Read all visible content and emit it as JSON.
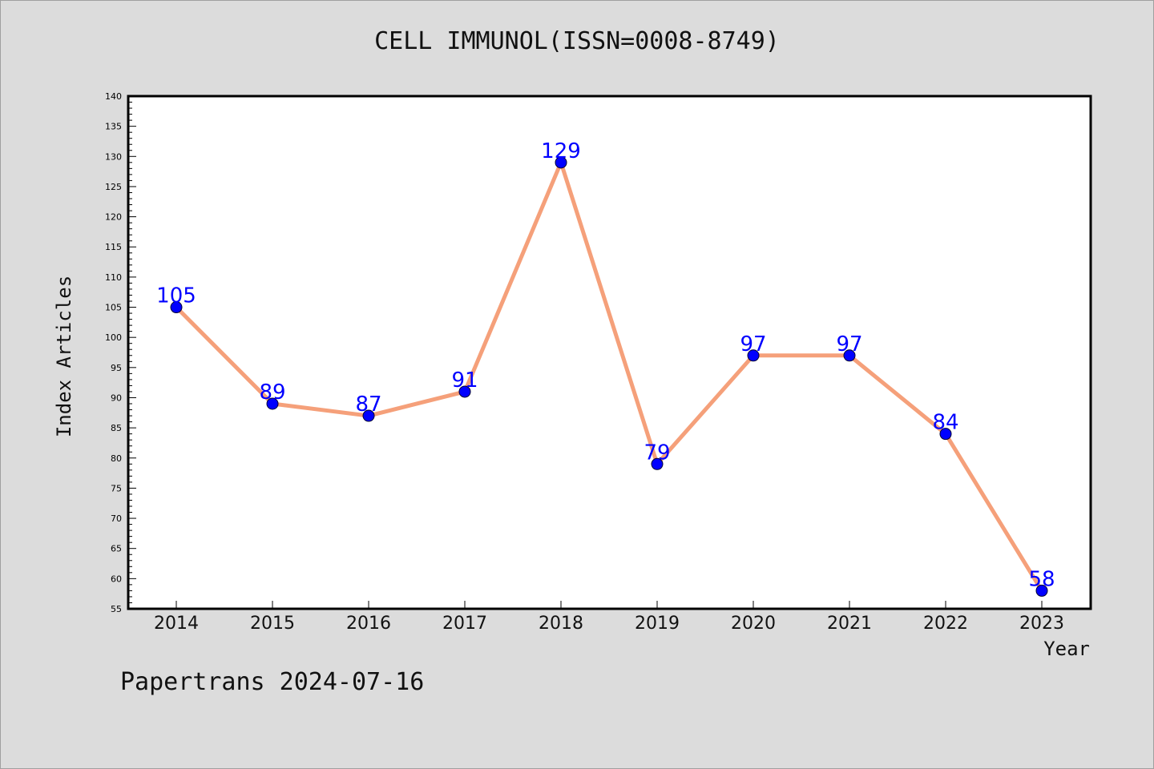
{
  "chart_data": {
    "type": "line",
    "title": "CELL IMMUNOL(ISSN=0008-8749)",
    "xlabel": "Year",
    "ylabel": "Index Articles",
    "x": [
      "2014",
      "2015",
      "2016",
      "2017",
      "2018",
      "2019",
      "2020",
      "2021",
      "2022",
      "2023"
    ],
    "series": [
      {
        "values": [
          105,
          89,
          87,
          91,
          129,
          79,
          97,
          97,
          84,
          58
        ]
      }
    ],
    "data_labels": [
      "105",
      "89",
      "87",
      "91",
      "129",
      "79",
      "97",
      "97",
      "84",
      "58"
    ],
    "ylim": [
      55,
      140
    ],
    "y_major_step": 5,
    "y_minor_step": 1,
    "y_ticks": [
      "55",
      "60",
      "65",
      "70",
      "75",
      "80",
      "85",
      "90",
      "95",
      "100",
      "105",
      "110",
      "115",
      "120",
      "125",
      "130",
      "135",
      "140"
    ],
    "grid": false,
    "legend": "none",
    "colors": {
      "line": "#f5a07a",
      "marker": "#0000ff",
      "label": "#0000ff",
      "background": "#dcdcdc",
      "plot_background": "#ffffff"
    }
  },
  "footer": "Papertrans 2024-07-16"
}
